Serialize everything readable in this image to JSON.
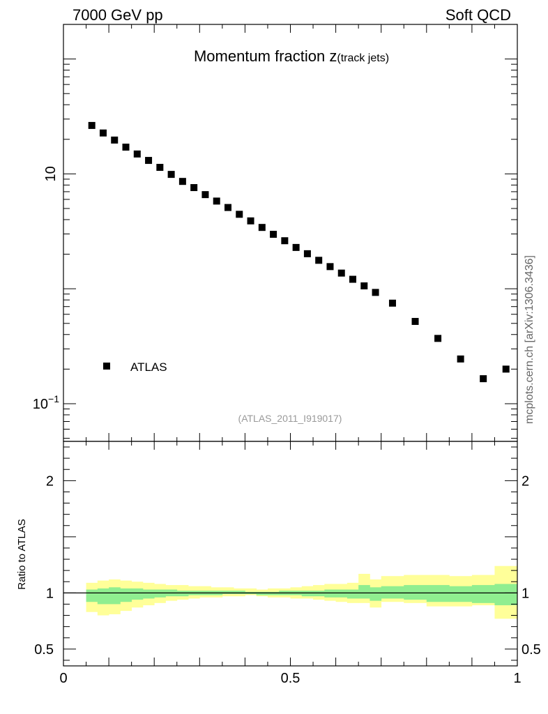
{
  "header": {
    "left": "7000 GeV pp",
    "right": "Soft QCD"
  },
  "side_label": "mcplots.cern.ch [arXiv:1306.3436]",
  "chart_data": [
    {
      "type": "scatter",
      "title_main": "Momentum fraction ",
      "title_var": "z",
      "title_sub": "(track jets)",
      "analysis_label": "(ATLAS_2011_I919017)",
      "y_scale": "log",
      "ylim": [
        0.047,
        200
      ],
      "xlim": [
        0,
        1
      ],
      "y_ticks": [
        {
          "value": 0.1,
          "base": "10",
          "exp": "−1"
        },
        {
          "value": 10,
          "base": "10",
          "exp": ""
        }
      ],
      "legend": "left",
      "series": [
        {
          "name": "ATLAS",
          "color": "#000000",
          "marker": "square",
          "x": [
            0.0625,
            0.0875,
            0.1125,
            0.1375,
            0.1625,
            0.1875,
            0.2125,
            0.2375,
            0.2625,
            0.2875,
            0.3125,
            0.3375,
            0.3625,
            0.3875,
            0.4125,
            0.4375,
            0.4625,
            0.4875,
            0.5125,
            0.5375,
            0.5625,
            0.5875,
            0.6125,
            0.6375,
            0.6625,
            0.6875,
            0.725,
            0.775,
            0.825,
            0.875,
            0.925,
            0.975
          ],
          "y": [
            26.4,
            22.7,
            19.7,
            17.1,
            14.9,
            13.1,
            11.4,
            9.9,
            8.6,
            7.6,
            6.6,
            5.8,
            5.1,
            4.45,
            3.9,
            3.42,
            2.98,
            2.62,
            2.29,
            2.02,
            1.77,
            1.56,
            1.37,
            1.21,
            1.06,
            0.93,
            0.75,
            0.52,
            0.37,
            0.245,
            0.165,
            0.2
          ]
        }
      ]
    },
    {
      "type": "area",
      "ylabel": "Ratio to ATLAS",
      "xlim": [
        0,
        1
      ],
      "ylim": [
        0.35,
        2.35
      ],
      "x_ticks": [
        {
          "value": 0,
          "label": "0"
        },
        {
          "value": 0.5,
          "label": "0.5"
        },
        {
          "value": 1,
          "label": "1"
        }
      ],
      "y_ticks": [
        {
          "value": 0.5,
          "label": "0.5"
        },
        {
          "value": 1,
          "label": "1"
        },
        {
          "value": 2,
          "label": "2"
        }
      ],
      "reference_line": 1,
      "band_colors": {
        "outer": "#ffff99",
        "inner": "#90ee90"
      },
      "bins": {
        "x_low": [
          0.05,
          0.075,
          0.1,
          0.125,
          0.15,
          0.175,
          0.2,
          0.225,
          0.25,
          0.275,
          0.3,
          0.325,
          0.35,
          0.375,
          0.4,
          0.425,
          0.45,
          0.475,
          0.5,
          0.525,
          0.55,
          0.575,
          0.6,
          0.625,
          0.65,
          0.675,
          0.7,
          0.75,
          0.8,
          0.85,
          0.9,
          0.95
        ],
        "x_high": [
          0.075,
          0.1,
          0.125,
          0.15,
          0.175,
          0.2,
          0.225,
          0.25,
          0.275,
          0.3,
          0.325,
          0.35,
          0.375,
          0.4,
          0.425,
          0.45,
          0.475,
          0.5,
          0.525,
          0.55,
          0.575,
          0.6,
          0.625,
          0.65,
          0.675,
          0.7,
          0.75,
          0.8,
          0.85,
          0.9,
          0.95,
          1.0
        ],
        "outer_low": [
          0.83,
          0.8,
          0.81,
          0.84,
          0.87,
          0.89,
          0.91,
          0.93,
          0.94,
          0.95,
          0.96,
          0.96,
          0.97,
          0.97,
          0.98,
          0.97,
          0.96,
          0.96,
          0.95,
          0.95,
          0.94,
          0.93,
          0.92,
          0.91,
          0.91,
          0.87,
          0.92,
          0.91,
          0.88,
          0.88,
          0.89,
          0.77
        ],
        "outer_high": [
          1.09,
          1.11,
          1.12,
          1.11,
          1.1,
          1.09,
          1.08,
          1.07,
          1.07,
          1.06,
          1.06,
          1.05,
          1.05,
          1.04,
          1.04,
          1.03,
          1.04,
          1.04,
          1.05,
          1.06,
          1.07,
          1.08,
          1.08,
          1.09,
          1.17,
          1.12,
          1.15,
          1.16,
          1.16,
          1.15,
          1.16,
          1.24
        ],
        "inner_low": [
          0.92,
          0.9,
          0.9,
          0.92,
          0.94,
          0.95,
          0.96,
          0.97,
          0.97,
          0.98,
          0.98,
          0.98,
          0.99,
          0.99,
          0.99,
          0.98,
          0.98,
          0.98,
          0.98,
          0.97,
          0.97,
          0.96,
          0.96,
          0.95,
          0.95,
          0.93,
          0.95,
          0.94,
          0.92,
          0.92,
          0.91,
          0.89
        ],
        "inner_high": [
          1.03,
          1.04,
          1.05,
          1.04,
          1.04,
          1.03,
          1.03,
          1.03,
          1.02,
          1.02,
          1.02,
          1.02,
          1.02,
          1.02,
          1.01,
          1.01,
          1.01,
          1.02,
          1.02,
          1.02,
          1.02,
          1.03,
          1.03,
          1.03,
          1.07,
          1.05,
          1.06,
          1.07,
          1.07,
          1.06,
          1.07,
          1.08
        ]
      }
    }
  ]
}
